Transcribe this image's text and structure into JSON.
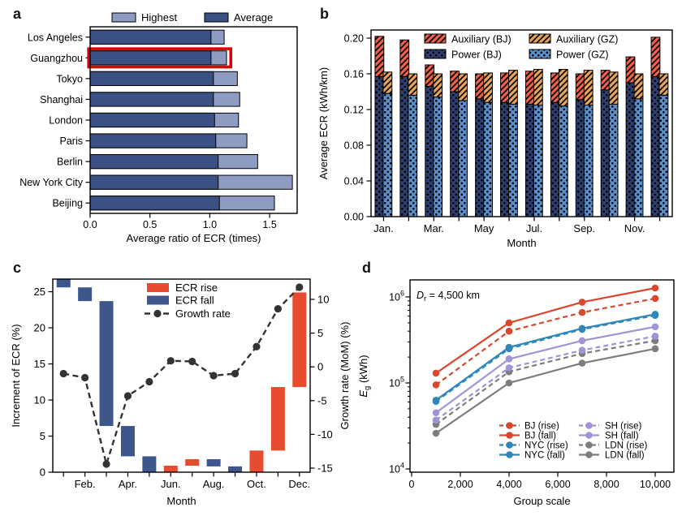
{
  "colors": {
    "highest": "#8e9cc3",
    "average": "#3b5184",
    "highlight_box": "#e00000",
    "power_bj": "#2e3f6f",
    "power_gz": "#5b8fc9",
    "aux_bj": "#f2604a",
    "aux_gz": "#e9a45b",
    "ecr_rise": "#e84c2f",
    "ecr_fall": "#3d568c",
    "growth_line": "#333333",
    "bj": "#d9472f",
    "nyc": "#2f86b8",
    "sh": "#a292d6",
    "ldn": "#7d7d7d",
    "axis": "#000000"
  },
  "chart_data": [
    {
      "id": "a",
      "panel_label": "a",
      "type": "bar",
      "orientation": "horizontal",
      "xlabel": "Average ratio of ECR (times)",
      "xlim": [
        0,
        1.73
      ],
      "xticks": [
        0,
        0.5,
        1.0,
        1.5
      ],
      "xtick_labels": [
        "0.0",
        "0.5",
        "1.0",
        "1.5"
      ],
      "categories": [
        "Los Angeles",
        "Guangzhou",
        "Tokyo",
        "Shanghai",
        "London",
        "Paris",
        "Berlin",
        "New York City",
        "Beijing"
      ],
      "series": [
        {
          "name": "Highest",
          "color_key": "highest",
          "values": [
            1.12,
            1.14,
            1.23,
            1.25,
            1.24,
            1.31,
            1.4,
            1.69,
            1.54
          ]
        },
        {
          "name": "Average",
          "color_key": "average",
          "values": [
            1.01,
            1.01,
            1.03,
            1.03,
            1.04,
            1.05,
            1.07,
            1.07,
            1.08
          ]
        }
      ],
      "highlight_category": "Guangzhou",
      "legend": [
        "Highest",
        "Average"
      ],
      "legend_position": "top"
    },
    {
      "id": "b",
      "panel_label": "b",
      "type": "bar",
      "variant": "grouped-stacked",
      "xlabel": "Month",
      "ylabel": "Average ECR (kWh/km)",
      "ylim": [
        0,
        0.209
      ],
      "yticks": [
        0,
        0.04,
        0.08,
        0.12,
        0.16,
        0.2
      ],
      "ytick_labels": [
        "0.00",
        "0.04",
        "0.08",
        "0.12",
        "0.16",
        "0.20"
      ],
      "categories": [
        "Jan.",
        "Feb.",
        "Mar.",
        "Apr.",
        "May",
        "Jun.",
        "Jul.",
        "Aug.",
        "Sep.",
        "Oct.",
        "Nov.",
        "Dec."
      ],
      "xtick_label_indices": [
        0,
        2,
        4,
        6,
        8,
        10
      ],
      "series": [
        {
          "name": "Power (BJ)",
          "group": "BJ",
          "pattern": "dots",
          "color_key": "power_bj",
          "values": [
            0.157,
            0.157,
            0.146,
            0.14,
            0.132,
            0.128,
            0.126,
            0.128,
            0.131,
            0.142,
            0.15,
            0.157
          ]
        },
        {
          "name": "Auxiliary (BJ)",
          "group": "BJ",
          "pattern": "hatch",
          "color_key": "aux_bj",
          "values": [
            0.045,
            0.041,
            0.024,
            0.023,
            0.028,
            0.033,
            0.037,
            0.033,
            0.029,
            0.022,
            0.029,
            0.044
          ]
        },
        {
          "name": "Power (GZ)",
          "group": "GZ",
          "pattern": "dots",
          "color_key": "power_gz",
          "values": [
            0.138,
            0.136,
            0.134,
            0.13,
            0.128,
            0.126,
            0.125,
            0.124,
            0.125,
            0.126,
            0.132,
            0.136
          ]
        },
        {
          "name": "Auxiliary (GZ)",
          "group": "GZ",
          "pattern": "hatch",
          "color_key": "aux_gz",
          "values": [
            0.024,
            0.024,
            0.026,
            0.03,
            0.033,
            0.038,
            0.04,
            0.041,
            0.039,
            0.036,
            0.028,
            0.024
          ]
        }
      ],
      "legend_rows": [
        [
          "Auxiliary (BJ)",
          "Auxiliary (GZ)"
        ],
        [
          "Power (BJ)",
          "Power (GZ)"
        ]
      ]
    },
    {
      "id": "c",
      "panel_label": "c",
      "type": "waterfall+line",
      "xlabel": "Month",
      "ylabel_left": "Increment of ECR (%)",
      "ylabel_right": "Growth rate (MoM) (%)",
      "ylim_left": [
        0,
        26.75
      ],
      "yticks_left": [
        0,
        5,
        10,
        15,
        20,
        25
      ],
      "ylim_right": [
        -15.6,
        13.0
      ],
      "yticks_right": [
        -15,
        -10,
        -5,
        0,
        5,
        10
      ],
      "categories": [
        "Jan.",
        "Feb.",
        "Mar.",
        "Apr.",
        "May",
        "Jun.",
        "Jul.",
        "Aug.",
        "Sep.",
        "Oct.",
        "Nov.",
        "Dec."
      ],
      "xtick_label_indices": [
        1,
        3,
        5,
        7,
        9,
        11
      ],
      "bars": [
        {
          "month": "Jan.",
          "type": "fall",
          "from": 25.6,
          "to": 26.7
        },
        {
          "month": "Feb.",
          "type": "fall",
          "from": 23.7,
          "to": 25.6
        },
        {
          "month": "Mar.",
          "type": "fall",
          "from": 6.4,
          "to": 23.7
        },
        {
          "month": "Apr.",
          "type": "fall",
          "from": 2.2,
          "to": 6.4
        },
        {
          "month": "May",
          "type": "fall",
          "from": 0,
          "to": 2.2
        },
        {
          "month": "Jun.",
          "type": "rise",
          "from": 0,
          "to": 0.9
        },
        {
          "month": "Jul.",
          "type": "rise",
          "from": 0.9,
          "to": 1.8
        },
        {
          "month": "Aug.",
          "type": "fall",
          "from": 0.8,
          "to": 1.8
        },
        {
          "month": "Sep.",
          "type": "fall",
          "from": 0,
          "to": 0.8
        },
        {
          "month": "Oct.",
          "type": "rise",
          "from": 0,
          "to": 3.0
        },
        {
          "month": "Nov.",
          "type": "rise",
          "from": 3.0,
          "to": 11.8
        },
        {
          "month": "Dec.",
          "type": "rise",
          "from": 11.8,
          "to": 24.9
        }
      ],
      "growth_rate": [
        -1.0,
        -1.6,
        -14.4,
        -4.3,
        -2.2,
        0.9,
        0.8,
        -1.3,
        -1.0,
        3.0,
        8.6,
        11.8
      ],
      "legend": [
        "ECR rise",
        "ECR fall",
        "Growth rate"
      ]
    },
    {
      "id": "d",
      "panel_label": "d",
      "type": "line",
      "xlabel": "Group scale",
      "ylabel": {
        "var": "E",
        "sub": "g",
        "rest": " (kWh)"
      },
      "yscale": "log",
      "ylim": [
        10000,
        1600000
      ],
      "ytick_exponents": [
        4,
        5,
        6
      ],
      "xlim": [
        0,
        10766
      ],
      "xticks": [
        0,
        2000,
        4000,
        6000,
        8000,
        10000
      ],
      "xtick_labels": [
        "0",
        "2,000",
        "4,000",
        "6,000",
        "8,000",
        "10,000"
      ],
      "annotation": {
        "var": "D",
        "sub": "r",
        "rest": " = 4,500 km"
      },
      "x": [
        1000,
        4000,
        7000,
        10000
      ],
      "series": [
        {
          "name": "BJ (rise)",
          "color_key": "bj",
          "style": "dashed",
          "values": [
            95000,
            400000,
            660000,
            960000
          ]
        },
        {
          "name": "BJ (fall)",
          "color_key": "bj",
          "style": "solid",
          "values": [
            130000,
            500000,
            870000,
            1270000
          ]
        },
        {
          "name": "NYC (rise)",
          "color_key": "nyc",
          "style": "dashed",
          "values": [
            61000,
            250000,
            420000,
            610000
          ]
        },
        {
          "name": "NYC (fall)",
          "color_key": "nyc",
          "style": "solid",
          "values": [
            63000,
            260000,
            430000,
            630000
          ]
        },
        {
          "name": "SH (rise)",
          "color_key": "sh",
          "style": "dashed",
          "values": [
            37000,
            150000,
            240000,
            350000
          ]
        },
        {
          "name": "SH (fall)",
          "color_key": "sh",
          "style": "solid",
          "values": [
            45000,
            190000,
            310000,
            450000
          ]
        },
        {
          "name": "LDN (rise)",
          "color_key": "ldn",
          "style": "dashed",
          "values": [
            33000,
            135000,
            220000,
            310000
          ]
        },
        {
          "name": "LDN (fall)",
          "color_key": "ldn",
          "style": "solid",
          "values": [
            26000,
            100000,
            170000,
            250000
          ]
        }
      ],
      "legend_columns": [
        [
          "BJ (rise)",
          "BJ (fall)",
          "NYC (rise)",
          "NYC (fall)"
        ],
        [
          "SH (rise)",
          "SH (fall)",
          "LDN (rise)",
          "LDN (fall)"
        ]
      ]
    }
  ]
}
